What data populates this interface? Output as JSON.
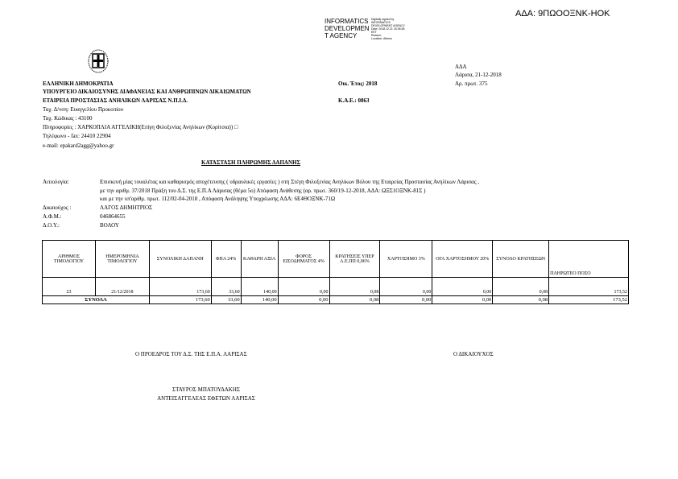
{
  "ada_stamp": "ΑΔΑ: 9ΠΩΟΟΞΝΚ-ΗΟΚ",
  "signature_block": {
    "org_lines": [
      "INFORMATICS",
      "DEVELOPMEN",
      "T AGENCY"
    ],
    "detail_lines": [
      "Digitally signed by",
      "INFORMATICS",
      "DEVELOPMENT AGENCY",
      "Date: 2018.12.21 15:35:38",
      "EET",
      "Reason:",
      "Location: Athens"
    ]
  },
  "header": {
    "left": [
      "ΕΛΛΗΝΙΚΗ ΔΗΜΟΚΡΑΤΙΑ",
      "ΥΠΟΥΡΓΕΙΟ ΔΙΚΑΙΟΣΥΝΗΣ ΔΙΑΦΑΝΕΙΑΣ ΚΑΙ ΑΝΘΡΩΠΙΝΩΝ ΔΙΚΑΙΩΜΑΤΩΝ",
      "ΕΤΑΙΡΕΙΑ ΠΡΟΣΤΑΣΙΑΣ ΑΝΗΛΙΚΩΝ ΛΑΡΙΣΑΣ Ν.Π.Ι.Δ."
    ],
    "address": "Ταχ. Δ/νση: Ευαγγελίου Προκοπίου",
    "postal": "Ταχ. Κώδικας : 43100",
    "info": "Πληροφορίες : ΧΑΡΚΟΠΛΙΑ ΑΓΓΕΛΙΚΗ(Επίγη Φιλοξενίας Ανηλίκων (Κορίτσια)) □",
    "phone": "Τηλέφωνο - fax: 24410 22904",
    "email": "e-mail: epakard2agg@yahoo.gr",
    "fiscal_year": "Οικ. Έτος: 2018",
    "kae": "Κ.Α.Ε.: 0863",
    "ada_label": "ΑΔΑ",
    "place_date": "Λάρισα, 21-12-2018",
    "protocol": "Αρ. πρωτ. 375"
  },
  "title": "ΚΑΤΑΣΤΑΣΗ ΠΛΗΡΩΜΗΣ ΔΑΠΑΝΗΣ",
  "fields": {
    "reason_label": "Αιτιολογία:",
    "reason_lines": [
      "Επισκευή μίας τουαλέτας και καθαρισμός αποχέτευσης ( υδραυλικές εργασίες ) στη Στέγη Φιλοξενίας Ανηλίκων Βόλου της Εταιρείας Προστασίας Ανηλίκων Λάρισας ,",
      "με την αριθμ. 37/2018 Πράξη του Δ.Σ. της Ε.Π.Α Λάρισας (θέμα 5ο) Απόφαση Ανάθεσης (αρ. πρωτ. 360/19-12-2018, ΑΔΑ: ΩΞΣ1ΟΞΝΚ-81Σ )",
      "και με την υπ'αριθμ. πρωτ. 112/02-04-2018 , Απόφαση Ανάληψης Υποχρέωσης ΑΔΑ: 6Ε4ΘΟΞΝΚ-71Ω"
    ],
    "beneficiary_label": "Δικαιούχος :",
    "beneficiary": "ΛΑΓΟΣ ΔΗΜΗΤΡΙΟΣ",
    "afm_label": "Α.Φ.Μ.:",
    "afm": "046864655",
    "doy_label": "Δ.Ο.Υ.:",
    "doy": "ΒΟΛΟΥ"
  },
  "table": {
    "headers": [
      "ΑΡΙΘΜΟΣ ΤΙΜΟΛΟΓΙΟΥ",
      "ΗΜΕΡΟΜΗΝΙΑ ΤΙΜΟΛΟΓΙΟΥ",
      "ΣΥΝΟΛΙΚΗ ΔΑΠΑΝΗ",
      "ΦΠΑ 24%",
      "ΚΑΘΑΡΗ ΑΞΙΑ",
      "ΦΟΡΟΣ ΕΙΣΟΔΗΜΑΤΟΣ 4%",
      "ΚΡΑΤΗΣΕΙΣ ΥΠΕΡ Α.Ε.ΠΠ 0,06%",
      "ΧΑΡΤΟΣΗΜΟ 3%",
      "ΟΓΑ ΧΑΡΤΟΣΗΜΟΥ 20%",
      "ΣΥΝΟΛΟ ΚΡΑΤΗΣΕΩΝ",
      "ΠΛΗΡΩΤΕΟ ΠΟΣΟ"
    ],
    "row": [
      "23",
      "21/12/2018",
      "173,60",
      "33,60",
      "140,00",
      "0,00",
      "0,08",
      "0,00",
      "0,00",
      "0,08",
      "173,52"
    ],
    "totals_label": "ΣΥΝΟΛΑ",
    "totals": [
      "173,60",
      "33,60",
      "140,00",
      "0,00",
      "0,08",
      "0,00",
      "0,00",
      "0,08",
      "173,52"
    ]
  },
  "footer": {
    "president": "Ο ΠΡΟΕΔΡΟΣ ΤΟΥ Δ.Σ. ΤΗΣ Ε.Π.Α. ΛΑΡΙΣΑΣ",
    "beneficiary": "Ο ΔΙΚΑΙΟΥΧΟΣ",
    "name": "ΣΤΑΥΡΟΣ ΜΠΑΤΟΥΔΑΚΗΣ",
    "role": "ΑΝΤΕΙΣΑΓΓΕΛΕΑΣ ΕΦΕΤΩΝ ΛΑΡΙΣΑΣ"
  }
}
